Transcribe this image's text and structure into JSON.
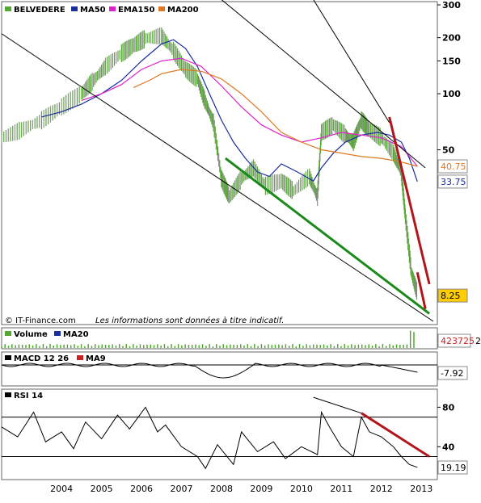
{
  "chart_data": [
    {
      "type": "line",
      "panel": "price",
      "title": "",
      "scale": "log",
      "grid": false,
      "legend_placement": "top-left",
      "x_ticks": [
        "2004",
        "2005",
        "2006",
        "2007",
        "2008",
        "2009",
        "2010",
        "2011",
        "2012",
        "2013"
      ],
      "y_ticks": [
        300,
        200,
        150,
        100,
        50
      ],
      "ylim": [
        6,
        300
      ],
      "series": [
        {
          "name": "BELVEDERE",
          "color": "#55a833",
          "style": "bars",
          "x": [
            2003.0,
            2003.5,
            2004.0,
            2004.5,
            2005.0,
            2005.3,
            2005.6,
            2006.0,
            2006.3,
            2006.6,
            2007.0,
            2007.3,
            2007.6,
            2007.9,
            2008.1,
            2008.3,
            2008.5,
            2008.7,
            2009.0,
            2009.3,
            2009.6,
            2010.0,
            2010.3,
            2010.7,
            2010.9,
            2011.0,
            2011.3,
            2011.6,
            2011.8,
            2012.0,
            2012.2,
            2012.5,
            2012.8,
            2013.0,
            2013.1,
            2013.25,
            2013.4
          ],
          "y": [
            58,
            64,
            72,
            85,
            100,
            118,
            140,
            165,
            182,
            198,
            205,
            170,
            135,
            120,
            90,
            70,
            35,
            28,
            35,
            40,
            32,
            34,
            30,
            36,
            28,
            62,
            68,
            60,
            55,
            72,
            64,
            58,
            48,
            38,
            22,
            11,
            8.5
          ]
        },
        {
          "name": "MA50",
          "color": "#1a2e9e",
          "x": [
            2004.0,
            2004.5,
            2005.0,
            2005.5,
            2006.0,
            2006.5,
            2007.0,
            2007.3,
            2007.6,
            2007.9,
            2008.2,
            2008.5,
            2008.8,
            2009.1,
            2009.4,
            2009.7,
            2010.0,
            2010.4,
            2010.8,
            2011.0,
            2011.3,
            2011.6,
            2012.0,
            2012.4,
            2012.7,
            2013.0,
            2013.2,
            2013.4
          ],
          "y": [
            75,
            80,
            88,
            100,
            118,
            150,
            185,
            195,
            175,
            140,
            100,
            72,
            55,
            45,
            38,
            36,
            42,
            38,
            34,
            40,
            48,
            55,
            60,
            62,
            60,
            55,
            45,
            33.75
          ]
        },
        {
          "name": "EMA150",
          "color": "#dd22cc",
          "x": [
            2005.0,
            2005.5,
            2006.0,
            2006.5,
            2007.0,
            2007.5,
            2008.0,
            2008.5,
            2009.0,
            2009.5,
            2010.0,
            2010.5,
            2011.0,
            2011.5,
            2012.0,
            2012.5,
            2013.0,
            2013.4
          ],
          "y": [
            92,
            100,
            112,
            135,
            150,
            155,
            140,
            110,
            85,
            68,
            60,
            55,
            58,
            62,
            60,
            58,
            52,
            40.75
          ]
        },
        {
          "name": "MA200",
          "color": "#e07820",
          "x": [
            2006.3,
            2006.7,
            2007.0,
            2007.5,
            2008.0,
            2008.5,
            2009.0,
            2009.5,
            2010.0,
            2010.5,
            2011.0,
            2011.5,
            2012.0,
            2012.5,
            2013.0,
            2013.4
          ],
          "y": [
            108,
            118,
            128,
            135,
            132,
            120,
            100,
            80,
            62,
            55,
            50,
            48,
            46,
            45,
            43,
            40.75
          ]
        }
      ],
      "trendlines": [
        {
          "color": "#000000",
          "x": [
            2003.0,
            2013.8
          ],
          "y": [
            210,
            6
          ]
        },
        {
          "color": "#000000",
          "x": [
            2008.5,
            2013.6
          ],
          "y": [
            320,
            40
          ]
        },
        {
          "color": "#000000",
          "x": [
            2010.8,
            2012.7
          ],
          "y": [
            320,
            70
          ]
        },
        {
          "color": "#1a8a1a",
          "x": [
            2008.6,
            2013.7
          ],
          "y": [
            45,
            6.6
          ]
        },
        {
          "color": "#b0161a",
          "x": [
            2012.7,
            2013.7
          ],
          "y": [
            75,
            9.5
          ]
        },
        {
          "color": "#b0161a",
          "x": [
            2013.4,
            2013.6
          ],
          "y": [
            11,
            7
          ]
        }
      ],
      "value_labels": [
        {
          "value": "40.75",
          "color": "#e07820",
          "y": 40.75
        },
        {
          "value": "33.75",
          "color": "#1a2e9e",
          "y": 33.75
        },
        {
          "value": "8.25",
          "color": "#000000",
          "bg": "#ffcc00",
          "y": 8.25
        }
      ],
      "annotation_left": "© IT-Finance.com",
      "annotation_right": "Les informations sont données à titre indicatif."
    },
    {
      "type": "bar",
      "panel": "volume",
      "series": [
        {
          "name": "Volume",
          "color": "#55a833"
        },
        {
          "name": "MA20",
          "color": "#1a2e9e"
        }
      ],
      "value_label": "423725"
    },
    {
      "type": "line",
      "panel": "macd",
      "series": [
        {
          "name": "MACD 12 26",
          "color": "#000000"
        },
        {
          "name": "MA9",
          "color": "#cc2222"
        }
      ],
      "value_label": "-7.92"
    },
    {
      "type": "line",
      "panel": "rsi",
      "series": [
        {
          "name": "RSI 14",
          "color": "#000000",
          "x": [
            2003.0,
            2003.4,
            2003.8,
            2004.1,
            2004.5,
            2004.8,
            2005.1,
            2005.5,
            2005.9,
            2006.2,
            2006.6,
            2006.9,
            2007.1,
            2007.5,
            2007.9,
            2008.1,
            2008.4,
            2008.8,
            2009.0,
            2009.4,
            2009.8,
            2010.1,
            2010.5,
            2010.9,
            2011.0,
            2011.2,
            2011.5,
            2011.8,
            2012.0,
            2012.2,
            2012.5,
            2012.8,
            2013.0,
            2013.2,
            2013.4
          ],
          "y": [
            60,
            50,
            75,
            45,
            55,
            38,
            65,
            48,
            72,
            58,
            80,
            55,
            62,
            40,
            30,
            18,
            42,
            22,
            55,
            35,
            45,
            28,
            40,
            32,
            75,
            60,
            40,
            30,
            70,
            55,
            50,
            40,
            30,
            22,
            19.19
          ]
        }
      ],
      "y_ticks": [
        80,
        40
      ],
      "levels": [
        70,
        30
      ],
      "ylim": [
        10,
        95
      ],
      "trendlines": [
        {
          "color": "#000000",
          "x": [
            2010.8,
            2012.0
          ],
          "y": [
            90,
            74
          ]
        },
        {
          "color": "#b0161a",
          "x": [
            2012.0,
            2013.7
          ],
          "y": [
            74,
            30
          ]
        }
      ],
      "value_label": "19.19"
    }
  ],
  "legend": {
    "price_items": [
      {
        "name": "BELVEDERE",
        "color": "#55a833"
      },
      {
        "name": "MA50",
        "color": "#1a2e9e"
      },
      {
        "name": "EMA150",
        "color": "#dd22cc"
      },
      {
        "name": "MA200",
        "color": "#e07820"
      }
    ]
  },
  "right_edge_label": "2"
}
